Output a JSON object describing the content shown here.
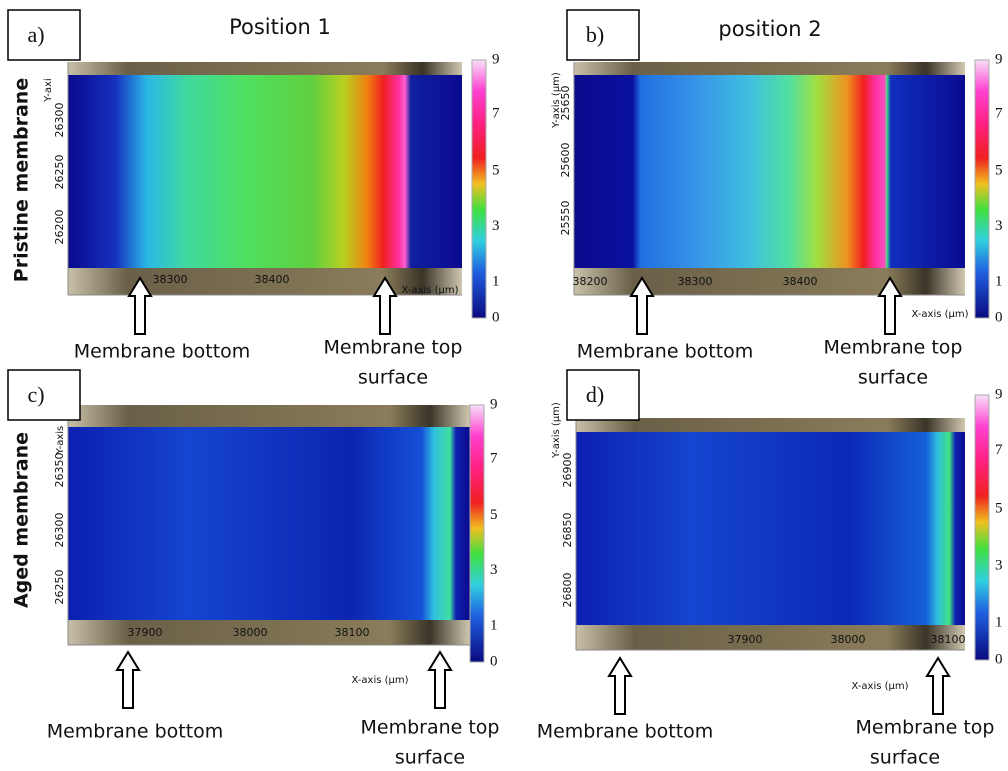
{
  "row_labels": [
    "Pristine membrane",
    "Aged membrane"
  ],
  "panels": [
    {
      "label": "a)",
      "title": "Position 1",
      "y_axis_label": "Y-axi",
      "x_axis_label": "X-axis (µm)",
      "yticks": [
        "26300",
        "26250",
        "26200"
      ],
      "xticks": [
        "38300",
        "38400"
      ],
      "colorbar_ticks": [
        "9",
        "7",
        "5",
        "3",
        "1",
        "0"
      ],
      "annotations": [
        "Membrane bottom",
        "Membrane top",
        "surface"
      ]
    },
    {
      "label": "b)",
      "title": "position 2",
      "y_axis_label": "Y-axis (µm)",
      "x_axis_label": "X-axis (µm)",
      "yticks": [
        "25650",
        "25600",
        "25550"
      ],
      "xticks": [
        "38200",
        "38300",
        "38400"
      ],
      "colorbar_ticks": [
        "9",
        "7",
        "5",
        "3",
        "1",
        "0"
      ],
      "annotations": [
        "Membrane bottom",
        "Membrane top",
        "surface"
      ]
    },
    {
      "label": "c)",
      "y_axis_label": "Y-axis",
      "x_axis_label": "X-axis (µm)",
      "yticks": [
        "26350",
        "26300",
        "26250"
      ],
      "xticks": [
        "37900",
        "38000",
        "38100"
      ],
      "colorbar_ticks": [
        "9",
        "7",
        "5",
        "3",
        "1",
        "0"
      ],
      "annotations": [
        "Membrane bottom",
        "Membrane top",
        "surface"
      ]
    },
    {
      "label": "d)",
      "y_axis_label": "Y-axis (µm)",
      "x_axis_label": "X-axis (µm)",
      "yticks": [
        "26900",
        "26850",
        "26800"
      ],
      "xticks": [
        "37900",
        "38000",
        "38100"
      ],
      "colorbar_ticks": [
        "9",
        "7",
        "5",
        "3",
        "1",
        "0"
      ],
      "annotations": [
        "Membrane bottom",
        "Membrane top",
        "surface"
      ]
    }
  ]
}
